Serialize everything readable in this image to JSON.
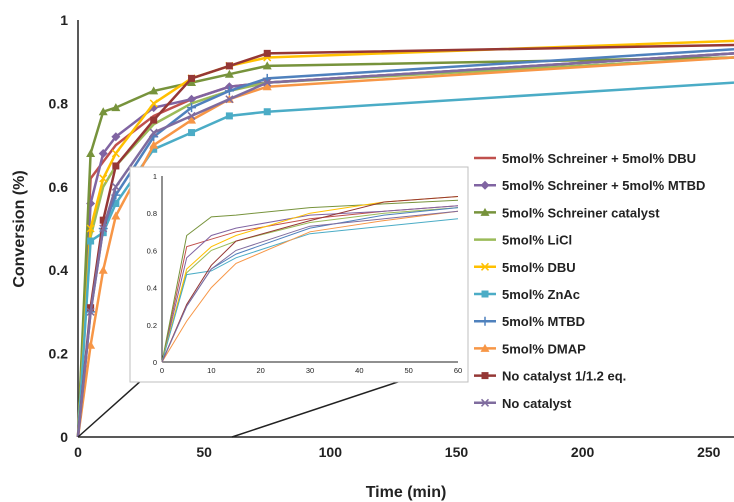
{
  "chart_data": [
    {
      "type": "line",
      "xlabel": "Time (min)",
      "ylabel": "Conversion (%)",
      "xlim": [
        0,
        260
      ],
      "ylim": [
        0,
        1
      ],
      "x_ticks": [
        "0",
        "50",
        "100",
        "150",
        "200",
        "250"
      ],
      "y_ticks": [
        "0",
        "0.2",
        "0.4",
        "0.6",
        "0.8",
        "1"
      ],
      "x_tick_values": [
        0,
        50,
        100,
        150,
        200,
        250
      ],
      "y_tick_values": [
        0,
        0.2,
        0.4,
        0.6,
        0.8,
        1
      ],
      "grid": false,
      "legend_position": "right",
      "series": [
        {
          "name": "5mol% Schreiner + 5mol% DBU",
          "color": "#c0504d",
          "marker": "none",
          "x": [
            0,
            5,
            10,
            15,
            30,
            45,
            60,
            75,
            260
          ],
          "y": [
            0,
            0.62,
            0.66,
            0.7,
            0.77,
            0.81,
            0.84,
            0.85,
            0.92
          ]
        },
        {
          "name": "5mol% Schreiner + 5mol% MTBD",
          "color": "#8064a2",
          "marker": "diamond",
          "x": [
            0,
            5,
            10,
            15,
            30,
            45,
            60,
            75,
            260
          ],
          "y": [
            0,
            0.56,
            0.68,
            0.72,
            0.79,
            0.81,
            0.84,
            0.85,
            0.92
          ]
        },
        {
          "name": "5mol% Schreiner catalyst",
          "color": "#77933c",
          "marker": "triangle",
          "x": [
            0,
            5,
            10,
            15,
            30,
            45,
            60,
            75,
            260
          ],
          "y": [
            0,
            0.68,
            0.78,
            0.79,
            0.83,
            0.85,
            0.87,
            0.89,
            0.91
          ]
        },
        {
          "name": "5mol% LiCl",
          "color": "#9bbb59",
          "marker": "none",
          "x": [
            0,
            5,
            10,
            15,
            30,
            45,
            60,
            75,
            260
          ],
          "y": [
            0,
            0.48,
            0.6,
            0.65,
            0.75,
            0.8,
            0.83,
            0.85,
            0.91
          ]
        },
        {
          "name": "5mol% DBU",
          "color": "#ffc000",
          "marker": "x",
          "x": [
            0,
            5,
            10,
            15,
            30,
            45,
            60,
            75,
            260
          ],
          "y": [
            0,
            0.5,
            0.62,
            0.68,
            0.8,
            0.86,
            0.89,
            0.91,
            0.95
          ]
        },
        {
          "name": "5mol% ZnAc",
          "color": "#4bacc6",
          "marker": "square",
          "x": [
            0,
            5,
            10,
            15,
            30,
            45,
            60,
            75,
            260
          ],
          "y": [
            0,
            0.47,
            0.49,
            0.56,
            0.69,
            0.73,
            0.77,
            0.78,
            0.85
          ]
        },
        {
          "name": "5mol% MTBD",
          "color": "#4f81bd",
          "marker": "plus",
          "x": [
            0,
            5,
            10,
            15,
            30,
            45,
            60,
            75,
            260
          ],
          "y": [
            0,
            0.3,
            0.5,
            0.58,
            0.72,
            0.79,
            0.83,
            0.86,
            0.93
          ]
        },
        {
          "name": "5mol% DMAP",
          "color": "#f79646",
          "marker": "triangle",
          "x": [
            0,
            5,
            10,
            15,
            30,
            45,
            60,
            75,
            260
          ],
          "y": [
            0,
            0.22,
            0.4,
            0.53,
            0.7,
            0.76,
            0.81,
            0.84,
            0.91
          ]
        },
        {
          "name": "No catalyst  1/1.2 eq.",
          "color": "#953735",
          "marker": "square",
          "x": [
            0,
            5,
            10,
            15,
            30,
            45,
            60,
            75,
            260
          ],
          "y": [
            0,
            0.31,
            0.52,
            0.65,
            0.76,
            0.86,
            0.89,
            0.92,
            0.94
          ]
        },
        {
          "name": "No catalyst",
          "color": "#7f6c9e",
          "marker": "x",
          "x": [
            0,
            5,
            10,
            15,
            30,
            45,
            60,
            75,
            260
          ],
          "y": [
            0,
            0.3,
            0.5,
            0.6,
            0.73,
            0.77,
            0.81,
            0.85,
            0.92
          ]
        }
      ]
    },
    {
      "type": "line",
      "xlim": [
        0,
        60
      ],
      "ylim": [
        0,
        1
      ],
      "x_ticks": [
        "0",
        "10",
        "20",
        "30",
        "40",
        "50",
        "60"
      ],
      "y_ticks": [
        "0",
        "0.2",
        "0.4",
        "0.6",
        "0.8",
        "1"
      ],
      "x_tick_values": [
        0,
        10,
        20,
        30,
        40,
        50,
        60
      ],
      "y_tick_values": [
        0,
        0.2,
        0.4,
        0.6,
        0.8,
        1
      ],
      "grid": false
    }
  ]
}
